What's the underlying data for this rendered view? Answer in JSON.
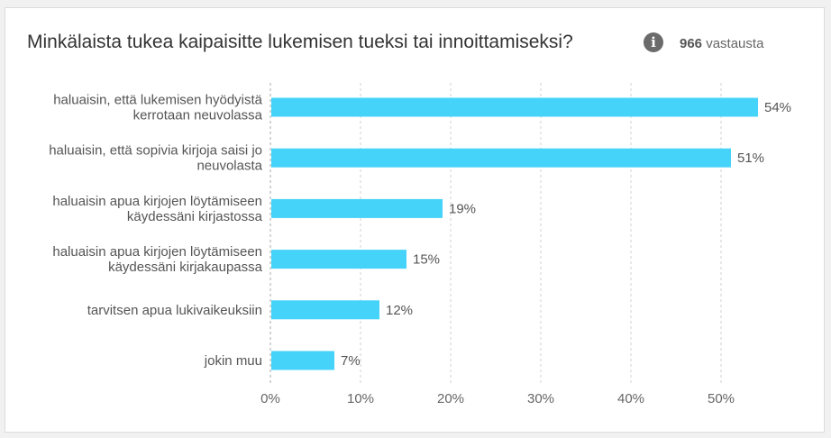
{
  "header": {
    "title": "Minkälaista tukea kaipaisitte lukemisen tueksi tai innoittamiseksi?",
    "info_icon": "info-icon",
    "response_count": "966",
    "response_suffix": "vastausta"
  },
  "colors": {
    "bar": "#45d3fa",
    "grid": "#d0d0d0",
    "axis": "#aaaaaa"
  },
  "chart_data": {
    "type": "bar",
    "orientation": "horizontal",
    "categories": [
      [
        "haluaisin, että lukemisen hyödyistä",
        "kerrotaan neuvolassa"
      ],
      [
        "haluaisin, että sopivia kirjoja saisi jo",
        "neuvolasta"
      ],
      [
        "haluaisin apua kirjojen löytämiseen",
        "käydessäni kirjastossa"
      ],
      [
        "haluaisin apua kirjojen löytämiseen",
        "käydessäni kirjakaupassa"
      ],
      [
        "tarvitsen apua lukivaikeuksiin"
      ],
      [
        "jokin muu"
      ]
    ],
    "values": [
      54,
      51,
      19,
      15,
      12,
      7
    ],
    "value_labels": [
      "54%",
      "51%",
      "19%",
      "15%",
      "12%",
      "7%"
    ],
    "x_ticks": [
      "0%",
      "10%",
      "20%",
      "30%",
      "40%",
      "50%"
    ],
    "x_tick_values": [
      0,
      10,
      20,
      30,
      40,
      50
    ],
    "xlim": [
      0,
      55
    ],
    "grid": true,
    "legend": false
  }
}
